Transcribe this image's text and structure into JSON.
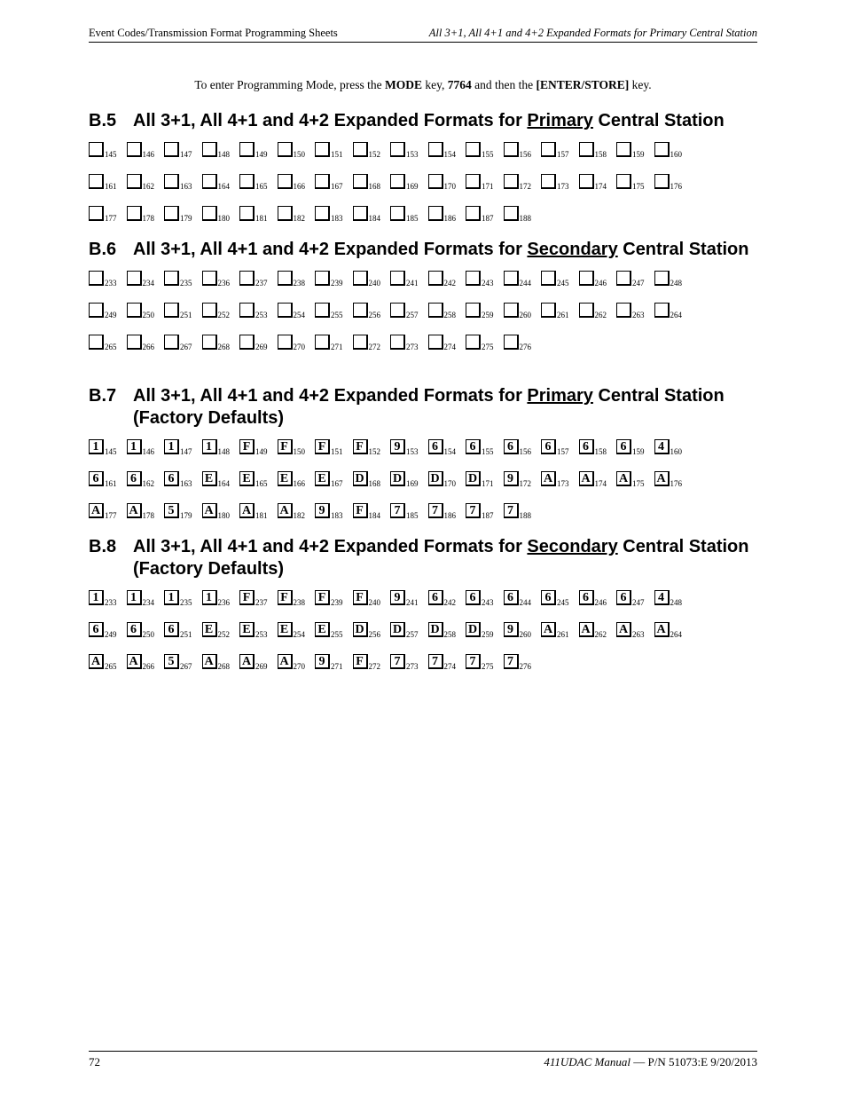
{
  "header": {
    "left": "Event Codes/Transmission Format Programming Sheets",
    "right_italic": "All 3+1, All 4+1 and 4+2 Expanded Formats for Primary Central Station"
  },
  "intro": {
    "prefix": "To enter Programming Mode, press the ",
    "mode_key": "MODE",
    "middle1": " key, ",
    "code": "7764",
    "middle2": " and then the ",
    "enter_key": "[ENTER/STORE]",
    "suffix": " key."
  },
  "sections": [
    {
      "num": "B.5",
      "title_plain_before": "All 3+1, All 4+1 and 4+2 Expanded Formats for ",
      "title_underline": "Primary",
      "title_plain_after": " Central Station",
      "box_start": 145,
      "box_end": 188,
      "per_row": 16,
      "values": null
    },
    {
      "num": "B.6",
      "title_plain_before": "All 3+1, All 4+1 and 4+2 Expanded Formats for ",
      "title_underline": "Secondary",
      "title_plain_after": " Central Station",
      "box_start": 233,
      "box_end": 276,
      "per_row": 16,
      "values": null
    },
    {
      "num": "B.7",
      "title_plain_before": "All 3+1, All 4+1 and 4+2 Expanded Formats for ",
      "title_underline": "Primary",
      "title_plain_after": " Central Station (Factory Defaults)",
      "box_start": 145,
      "box_end": 188,
      "per_row": 16,
      "values": [
        "1",
        "1",
        "1",
        "1",
        "F",
        "F",
        "F",
        "F",
        "9",
        "6",
        "6",
        "6",
        "6",
        "6",
        "6",
        "4",
        "6",
        "6",
        "6",
        "E",
        "E",
        "E",
        "E",
        "D",
        "D",
        "D",
        "D",
        "9",
        "A",
        "A",
        "A",
        "A",
        "A",
        "A",
        "5",
        "A",
        "A",
        "A",
        "9",
        "F",
        "7",
        "7",
        "7",
        "7"
      ],
      "extra_top_margin": true
    },
    {
      "num": "B.8",
      "title_plain_before": "All 3+1, All 4+1 and 4+2 Expanded Formats for ",
      "title_underline": "Secondary",
      "title_plain_after": " Central  Station (Factory Defaults)",
      "box_start": 233,
      "box_end": 276,
      "per_row": 16,
      "values": [
        "1",
        "1",
        "1",
        "1",
        "F",
        "F",
        "F",
        "F",
        "9",
        "6",
        "6",
        "6",
        "6",
        "6",
        "6",
        "4",
        "6",
        "6",
        "6",
        "E",
        "E",
        "E",
        "E",
        "D",
        "D",
        "D",
        "D",
        "9",
        "A",
        "A",
        "A",
        "A",
        "A",
        "A",
        "5",
        "A",
        "A",
        "A",
        "9",
        "F",
        "7",
        "7",
        "7",
        "7"
      ]
    }
  ],
  "footer": {
    "page_num": "72",
    "right_italic": "411UDAC Manual",
    "right_plain": " —   P/N 51073:E  9/20/2013"
  },
  "style": {
    "box_border_color": "#000000",
    "background": "#ffffff",
    "heading_font": "Arial",
    "body_font": "Times New Roman"
  }
}
